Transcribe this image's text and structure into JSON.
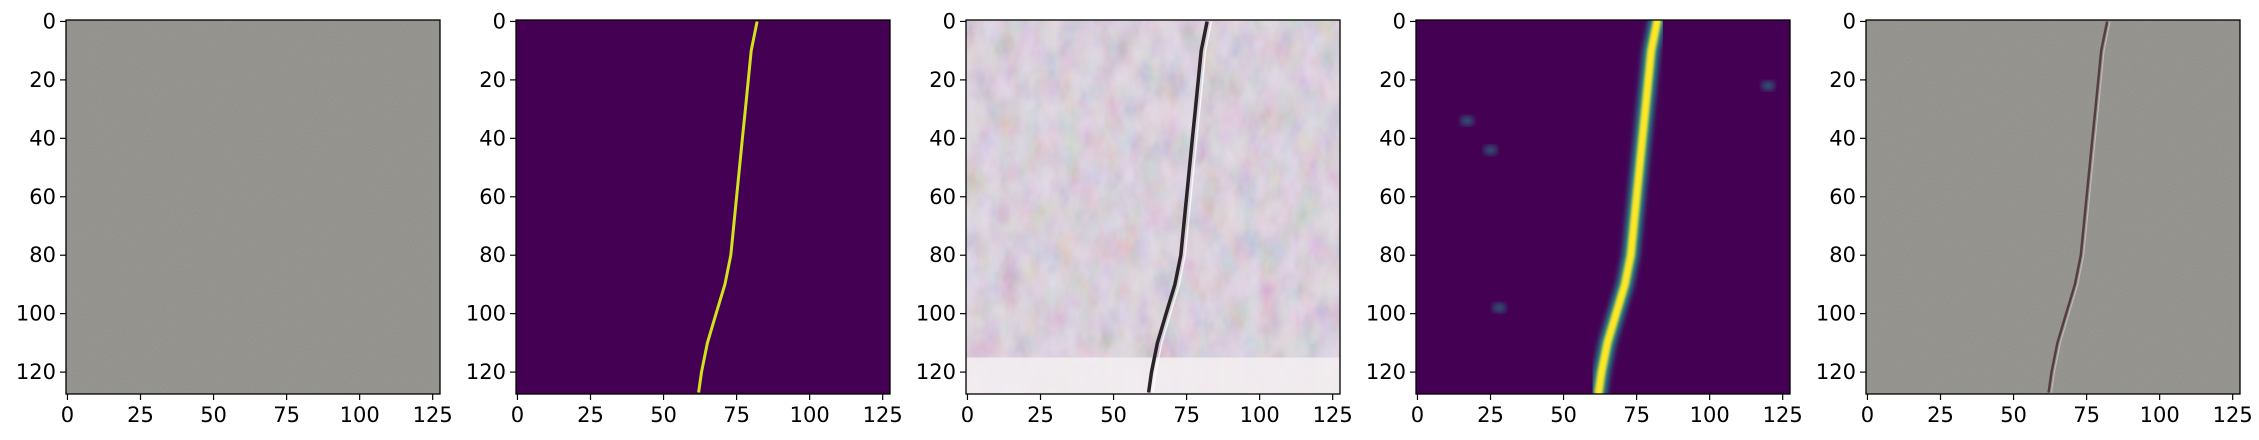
{
  "figure": {
    "panel_count": 5,
    "panels": [
      {
        "id": "input-image",
        "kind": "photo-gray-concrete"
      },
      {
        "id": "ground-truth-mask",
        "kind": "binary-mask",
        "colors": {
          "background": "#440154",
          "crack": "#d2e21b"
        }
      },
      {
        "id": "generated-image",
        "kind": "photo-pastel-noisy"
      },
      {
        "id": "predicted-probability",
        "kind": "heatmap",
        "colors": {
          "background": "#440154",
          "mid": "#21908d",
          "high": "#fde725"
        }
      },
      {
        "id": "overlay-image",
        "kind": "photo-gray-concrete-with-crack"
      }
    ],
    "x_ticks": [
      "0",
      "25",
      "50",
      "75",
      "100",
      "125"
    ],
    "y_ticks": [
      "0",
      "20",
      "40",
      "60",
      "80",
      "100",
      "120"
    ],
    "x_tick_values": [
      0,
      25,
      50,
      75,
      100,
      125
    ],
    "y_tick_values": [
      0,
      20,
      40,
      60,
      80,
      100,
      120
    ],
    "axis_range": [
      -0.5,
      127.5
    ],
    "crack_path": [
      [
        82,
        0
      ],
      [
        80,
        10
      ],
      [
        79,
        20
      ],
      [
        78,
        30
      ],
      [
        77,
        40
      ],
      [
        76,
        50
      ],
      [
        75,
        60
      ],
      [
        74,
        70
      ],
      [
        73,
        80
      ],
      [
        71,
        90
      ],
      [
        68,
        100
      ],
      [
        65,
        110
      ],
      [
        63,
        120
      ],
      [
        62,
        127
      ]
    ],
    "accent_colors": {
      "viridis_dark": "#440154",
      "viridis_teal": "#21908d",
      "viridis_yellow": "#fde725",
      "concrete_gray": "#9b9a95"
    }
  }
}
